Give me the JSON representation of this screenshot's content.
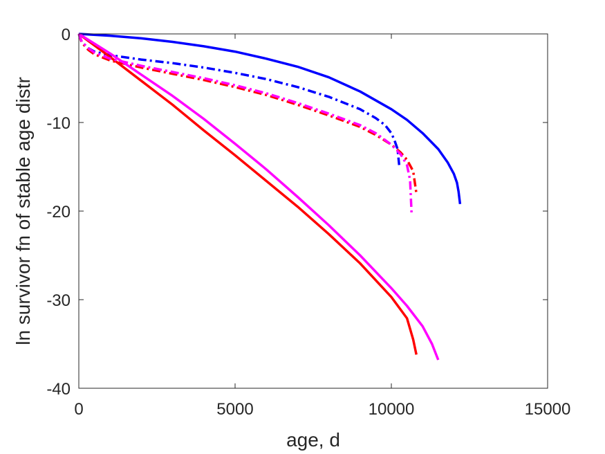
{
  "chart_data": {
    "type": "line",
    "title": "",
    "xlabel": "age, d",
    "ylabel": "ln survivor fn of stable age distr",
    "xlim": [
      0,
      15000
    ],
    "ylim": [
      -40,
      0
    ],
    "xticks": [
      0,
      5000,
      10000,
      15000
    ],
    "xtick_labels": [
      "0",
      "5000",
      "10000",
      "15000"
    ],
    "yticks": [
      0,
      -10,
      -20,
      -30,
      -40
    ],
    "ytick_labels": [
      "0",
      "-10",
      "-20",
      "-30",
      "-40"
    ],
    "grid": false,
    "legend": "none",
    "series": [
      {
        "color": "#0000ff",
        "style": "solid",
        "x": [
          0,
          1000,
          2000,
          3000,
          4000,
          5000,
          6000,
          7000,
          8000,
          9000,
          10000,
          10500,
          11000,
          11500,
          11800,
          12000,
          12100,
          12150,
          12200
        ],
        "y": [
          0,
          -0.2,
          -0.5,
          -0.9,
          -1.4,
          -2.0,
          -2.8,
          -3.7,
          -4.9,
          -6.5,
          -8.5,
          -9.7,
          -11.2,
          -13.0,
          -14.5,
          -15.8,
          -16.8,
          -17.8,
          -19.2
        ]
      },
      {
        "color": "#0000ff",
        "style": "dashdot",
        "x": [
          0,
          100,
          300,
          500,
          1000,
          2000,
          3000,
          4000,
          5000,
          6000,
          7000,
          8000,
          9000,
          9500,
          9800,
          10000,
          10100,
          10200,
          10250
        ],
        "y": [
          0,
          -1.0,
          -1.6,
          -2.0,
          -2.4,
          -2.9,
          -3.3,
          -3.8,
          -4.4,
          -5.1,
          -6.0,
          -7.1,
          -8.5,
          -9.5,
          -10.3,
          -11.2,
          -12.0,
          -13.0,
          -14.8
        ]
      },
      {
        "color": "#ff0000",
        "style": "solid",
        "x": [
          0,
          1000,
          2000,
          3000,
          4000,
          5000,
          6000,
          7000,
          8000,
          9000,
          10000,
          10500,
          10700,
          10800
        ],
        "y": [
          0,
          -2.6,
          -5.3,
          -8.0,
          -10.9,
          -13.7,
          -16.6,
          -19.5,
          -22.6,
          -25.9,
          -29.7,
          -32.1,
          -34.5,
          -36.2
        ]
      },
      {
        "color": "#ff0000",
        "style": "dashdot",
        "x": [
          0,
          100,
          300,
          500,
          1000,
          2000,
          3000,
          4000,
          5000,
          6000,
          7000,
          8000,
          9000,
          9500,
          10000,
          10300,
          10500,
          10700,
          10800
        ],
        "y": [
          0,
          -1.0,
          -1.8,
          -2.3,
          -3.0,
          -3.8,
          -4.5,
          -5.2,
          -6.0,
          -6.9,
          -8.0,
          -9.2,
          -10.5,
          -11.4,
          -12.5,
          -13.4,
          -14.2,
          -15.5,
          -18.0
        ]
      },
      {
        "color": "#ff00ff",
        "style": "solid",
        "x": [
          0,
          1000,
          2000,
          3000,
          4000,
          5000,
          6000,
          7000,
          8000,
          9000,
          10000,
          10500,
          11000,
          11300,
          11500
        ],
        "y": [
          0,
          -2.2,
          -4.6,
          -7.0,
          -9.6,
          -12.4,
          -15.3,
          -18.4,
          -21.6,
          -25.0,
          -28.7,
          -30.7,
          -33.0,
          -35.0,
          -36.8
        ]
      },
      {
        "color": "#ff00ff",
        "style": "dashdot",
        "x": [
          0,
          100,
          300,
          500,
          1000,
          2000,
          3000,
          4000,
          5000,
          6000,
          7000,
          8000,
          9000,
          9500,
          10000,
          10300,
          10500,
          10600,
          10650
        ],
        "y": [
          0,
          -0.9,
          -1.6,
          -2.1,
          -2.8,
          -3.6,
          -4.3,
          -5.0,
          -5.8,
          -6.7,
          -7.8,
          -9.0,
          -10.3,
          -11.2,
          -12.5,
          -13.6,
          -14.8,
          -16.5,
          -20.5
        ]
      }
    ]
  }
}
